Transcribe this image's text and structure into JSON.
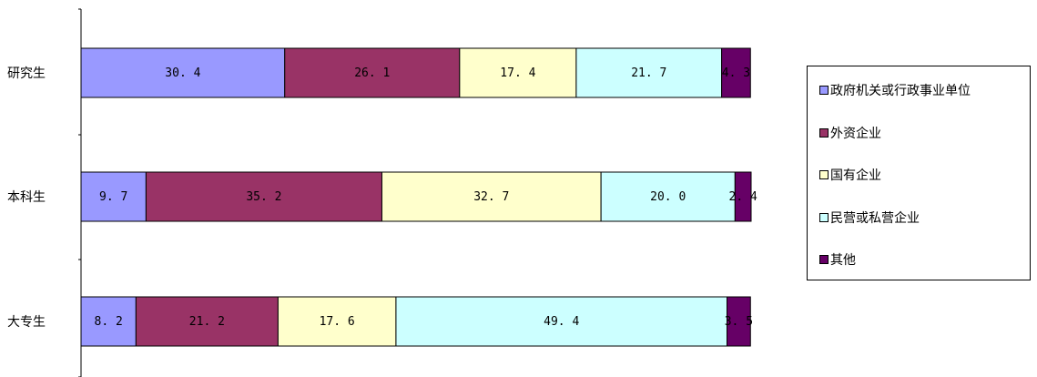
{
  "chart_data": {
    "type": "bar",
    "orientation": "horizontal",
    "stacked": true,
    "categories": [
      "研究生",
      "本科生",
      "大专生"
    ],
    "series": [
      {
        "name": "政府机关或行政事业单位",
        "color": "#9999ff",
        "values": [
          30.4,
          9.7,
          8.2
        ],
        "labels": [
          "30. 4",
          "9. 7",
          "8. 2"
        ]
      },
      {
        "name": "外资企业",
        "color": "#993366",
        "values": [
          26.1,
          35.2,
          21.2
        ],
        "labels": [
          "26. 1",
          "35. 2",
          "21. 2"
        ]
      },
      {
        "name": "国有企业",
        "color": "#ffffcc",
        "values": [
          17.4,
          32.7,
          17.6
        ],
        "labels": [
          "17. 4",
          "32. 7",
          "17. 6"
        ]
      },
      {
        "name": "民营或私营企业",
        "color": "#ccffff",
        "values": [
          21.7,
          20.0,
          49.4
        ],
        "labels": [
          "21. 7",
          "20. 0",
          "49. 4"
        ]
      },
      {
        "name": "其他",
        "color": "#660066",
        "values": [
          4.3,
          2.4,
          3.5
        ],
        "labels": [
          "4. 3",
          "2. 4",
          "3. 5"
        ]
      }
    ],
    "xlim": [
      0,
      100
    ],
    "legend_position": "right",
    "grid": false
  }
}
